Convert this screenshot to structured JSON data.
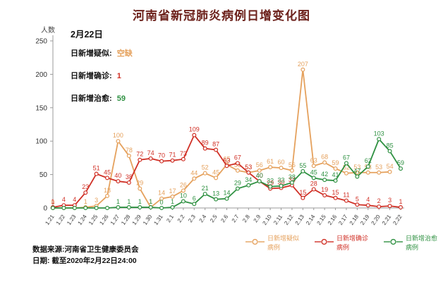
{
  "title": "河南省新冠肺炎病例日增变化图",
  "y_axis_label": "人数",
  "info_box": {
    "date": "2月22日",
    "rows": [
      {
        "label": "日新增疑似:",
        "value": "空缺",
        "color": "#E5A15D"
      },
      {
        "label": "日新增确诊:",
        "value": "1",
        "color": "#D03026"
      },
      {
        "label": "日新增治愈:",
        "value": "59",
        "color": "#2F9142"
      }
    ]
  },
  "legend": [
    {
      "name": "日新增疑似病例",
      "color": "#E5A15D"
    },
    {
      "name": "日新增确诊病例",
      "color": "#D03026"
    },
    {
      "name": "日新增治愈病例",
      "color": "#2F9142"
    }
  ],
  "footer": {
    "source": "数据来源:河南省卫生健康委员会",
    "date_line": "日期: 截至2020年2月22日24:00"
  },
  "chart_data": {
    "type": "line",
    "title": "河南省新冠肺炎病例日增变化图",
    "xlabel": "",
    "ylabel": "人数",
    "ylim": [
      0,
      250
    ],
    "yticks": [
      0,
      50,
      100,
      150,
      200,
      250
    ],
    "grid": false,
    "legend_position": "bottom-right",
    "x": [
      "1.21",
      "1.22",
      "1.23",
      "1.24",
      "1.25",
      "1.26",
      "1.27",
      "1.28",
      "1.29",
      "1.30",
      "1.31",
      "2.1",
      "2.2",
      "2.3",
      "2.4",
      "2.5",
      "2.6",
      "2.7",
      "2.8",
      "2.9",
      "2.10",
      "2.11",
      "2.12",
      "2.13",
      "2.14",
      "2.15",
      "2.16",
      "2.17",
      "2.18",
      "2.19",
      "2.20",
      "2.21",
      "2.22"
    ],
    "series": [
      {
        "name": "日新增疑似病例",
        "color": "#E5A15D",
        "values": [
          0,
          0,
          0,
          1,
          3,
          18,
          100,
          78,
          29,
          1,
          14,
          17,
          26,
          44,
          52,
          45,
          65,
          56,
          53,
          56,
          61,
          60,
          56,
          207,
          63,
          68,
          59,
          52,
          53,
          53,
          53,
          54,
          null
        ],
        "labels": [
          "0",
          "",
          "",
          "1",
          "3",
          "18",
          "100",
          "78",
          "29",
          "1",
          "14",
          "17",
          "26",
          "44",
          "52",
          "45",
          "65",
          "56",
          "53",
          "56",
          "61",
          "60",
          "56",
          "207",
          "63",
          "68",
          "59",
          "52",
          "53",
          "53",
          "53",
          "54",
          ""
        ],
        "note": "2.22 value missing (空缺)"
      },
      {
        "name": "日新增确诊病例",
        "color": "#D03026",
        "values": [
          1,
          4,
          4,
          23,
          51,
          45,
          40,
          38,
          72,
          74,
          70,
          71,
          73,
          109,
          89,
          87,
          63,
          67,
          53,
          40,
          29,
          30,
          34,
          15,
          28,
          19,
          15,
          11,
          5,
          4,
          2,
          3,
          1
        ],
        "labels": [
          "1",
          "4",
          "4",
          "23",
          "51",
          "45",
          "40",
          "38",
          "72",
          "74",
          "70",
          "71",
          "73",
          "109",
          "89",
          "87",
          "63",
          "67",
          "53",
          "40",
          "29",
          "30",
          "34",
          "15",
          "28",
          "19",
          "15",
          "11",
          "5",
          "4",
          "2",
          "3",
          "1"
        ]
      },
      {
        "name": "日新增治愈病例",
        "color": "#2F9142",
        "values": [
          0,
          0,
          0,
          0,
          0,
          0,
          1,
          1,
          1,
          1,
          0,
          1,
          10,
          6,
          21,
          13,
          14,
          29,
          34,
          40,
          32,
          33,
          38,
          55,
          45,
          42,
          41,
          67,
          47,
          62,
          103,
          85,
          59
        ],
        "labels": [
          "",
          "",
          "",
          "",
          "",
          "",
          "1",
          "1",
          "1",
          "1",
          "0",
          "1",
          "10",
          "6",
          "21",
          "13",
          "14",
          "29",
          "34",
          "40",
          "32",
          "33",
          "38",
          "55",
          "45",
          "42",
          "41",
          "67",
          "47",
          "62",
          "103",
          "85",
          "59"
        ]
      }
    ]
  }
}
